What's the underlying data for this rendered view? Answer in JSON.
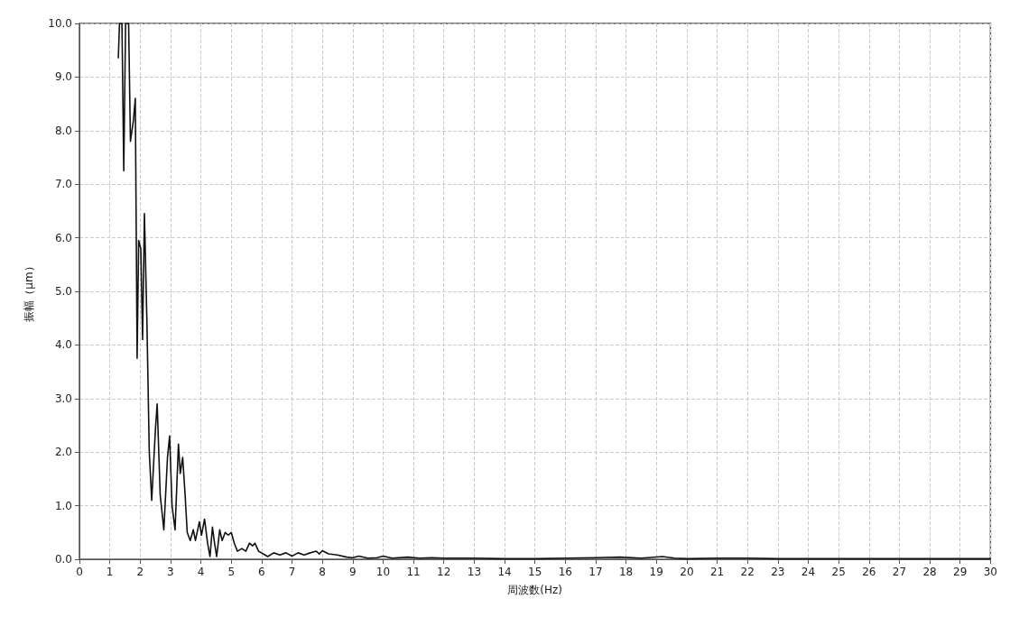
{
  "chart_data": {
    "type": "line",
    "xlabel": "周波数(Hz)",
    "ylabel": "振幅（μm）",
    "series": [
      {
        "color": "#111111",
        "x": [
          1.28,
          1.32,
          1.4,
          1.46,
          1.52,
          1.62,
          1.68,
          1.78,
          1.84,
          1.9,
          1.95,
          2.02,
          2.08,
          2.14,
          2.22,
          2.3,
          2.38,
          2.5,
          2.56,
          2.66,
          2.78,
          2.9,
          2.97,
          3.05,
          3.15,
          3.26,
          3.32,
          3.4,
          3.48,
          3.55,
          3.65,
          3.75,
          3.82,
          3.95,
          4.02,
          4.12,
          4.22,
          4.3,
          4.38,
          4.45,
          4.52,
          4.62,
          4.7,
          4.8,
          4.9,
          5.0,
          5.1,
          5.2,
          5.35,
          5.48,
          5.6,
          5.7,
          5.78,
          5.9,
          6.05,
          6.2,
          6.4,
          6.6,
          6.8,
          7.0,
          7.2,
          7.4,
          7.6,
          7.8,
          7.9,
          8.0,
          8.2,
          8.5,
          8.8,
          9.0,
          9.2,
          9.5,
          9.8,
          10.0,
          10.3,
          10.8,
          11.2,
          11.6,
          12.0,
          13,
          14,
          15,
          16,
          17,
          17.8,
          18.5,
          19.2,
          19.6,
          20,
          21,
          22,
          23,
          25,
          27,
          29,
          30
        ],
        "values": [
          9.35,
          10,
          10,
          7.25,
          10,
          10,
          7.8,
          8.2,
          8.6,
          3.75,
          5.95,
          5.8,
          4.1,
          6.45,
          4.5,
          2.0,
          1.1,
          2.4,
          2.9,
          1.2,
          0.55,
          1.9,
          2.3,
          1.0,
          0.55,
          2.15,
          1.6,
          1.9,
          1.2,
          0.5,
          0.35,
          0.55,
          0.35,
          0.7,
          0.45,
          0.75,
          0.3,
          0.05,
          0.6,
          0.3,
          0.05,
          0.55,
          0.35,
          0.5,
          0.45,
          0.5,
          0.3,
          0.15,
          0.2,
          0.15,
          0.3,
          0.25,
          0.3,
          0.15,
          0.1,
          0.05,
          0.12,
          0.08,
          0.12,
          0.06,
          0.12,
          0.08,
          0.12,
          0.15,
          0.1,
          0.16,
          0.1,
          0.08,
          0.04,
          0.03,
          0.06,
          0.02,
          0.03,
          0.06,
          0.02,
          0.04,
          0.02,
          0.03,
          0.02,
          0.02,
          0.01,
          0.01,
          0.02,
          0.03,
          0.04,
          0.02,
          0.05,
          0.02,
          0.01,
          0.02,
          0.02,
          0.01,
          0.01,
          0.01,
          0.01,
          0.01
        ]
      }
    ],
    "xlim": [
      0,
      30
    ],
    "xticks": [
      0,
      1,
      2,
      3,
      4,
      5,
      6,
      7,
      8,
      9,
      10,
      11,
      12,
      13,
      14,
      15,
      16,
      17,
      18,
      19,
      20,
      21,
      22,
      23,
      24,
      25,
      26,
      27,
      28,
      29,
      30
    ],
    "ylim": [
      0,
      10
    ],
    "yticks": [
      {
        "value": 0,
        "label": "0.0"
      },
      {
        "value": 1,
        "label": "1.0"
      },
      {
        "value": 2,
        "label": "2.0"
      },
      {
        "value": 3,
        "label": "3.0"
      },
      {
        "value": 4,
        "label": "4.0"
      },
      {
        "value": 5,
        "label": "5.0"
      },
      {
        "value": 6,
        "label": "6.0"
      },
      {
        "value": 7,
        "label": "7.0"
      },
      {
        "value": 8,
        "label": "8.0"
      },
      {
        "value": 9,
        "label": "9.0"
      },
      {
        "value": 10,
        "label": "10.0"
      }
    ],
    "grid": true,
    "marker": "none",
    "line_style": "solid"
  }
}
